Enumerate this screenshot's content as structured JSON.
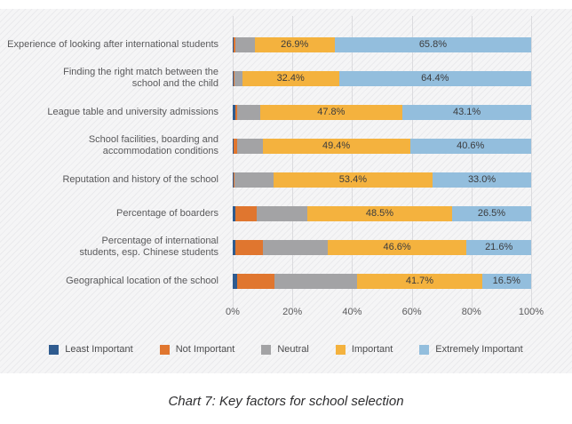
{
  "caption": "Chart 7: Key factors for school selection",
  "chart_data": {
    "type": "bar",
    "orientation": "horizontal",
    "stacked": true,
    "grid": "vertical",
    "legend_position": "bottom",
    "xlim": [
      0,
      100
    ],
    "x_ticks": [
      "0%",
      "20%",
      "40%",
      "60%",
      "80%",
      "100%"
    ],
    "x_tick_values": [
      0,
      20,
      40,
      60,
      80,
      100
    ],
    "value_suffix": "%",
    "categories": [
      "Experience of looking after international students",
      "Finding the right match between the\nschool and the child",
      "League table and university admissions",
      "School facilities, boarding and\naccommodation conditions",
      "Reputation and history of the school",
      "Percentage of boarders",
      "Percentage of international\nstudents, esp. Chinese students",
      "Geographical location of the school"
    ],
    "series": [
      {
        "name": "Least Important",
        "color": "#2f5b8f",
        "show_value_labels": false,
        "values": [
          0.3,
          0.2,
          0.9,
          0.3,
          0.2,
          1.0,
          1.0,
          1.5
        ]
      },
      {
        "name": "Not Important",
        "color": "#e0762f",
        "show_value_labels": false,
        "values": [
          0.5,
          0.3,
          0.6,
          1.2,
          0.4,
          7.0,
          9.2,
          12.5
        ]
      },
      {
        "name": "Neutral",
        "color": "#a3a3a5",
        "show_value_labels": false,
        "values": [
          6.5,
          2.7,
          7.6,
          8.5,
          13.0,
          17.0,
          21.6,
          27.8
        ]
      },
      {
        "name": "Important",
        "color": "#f4b23e",
        "show_value_labels": true,
        "values": [
          26.9,
          32.4,
          47.8,
          49.4,
          53.4,
          48.5,
          46.6,
          41.7
        ]
      },
      {
        "name": "Extremely Important",
        "color": "#93bedd",
        "show_value_labels": true,
        "values": [
          65.8,
          64.4,
          43.1,
          40.6,
          33.0,
          26.5,
          21.6,
          16.5
        ]
      }
    ]
  },
  "style": {
    "gridline_color": "#dbdbde",
    "label_color": "#59595b",
    "value_label_color": "#3b3b3d"
  }
}
